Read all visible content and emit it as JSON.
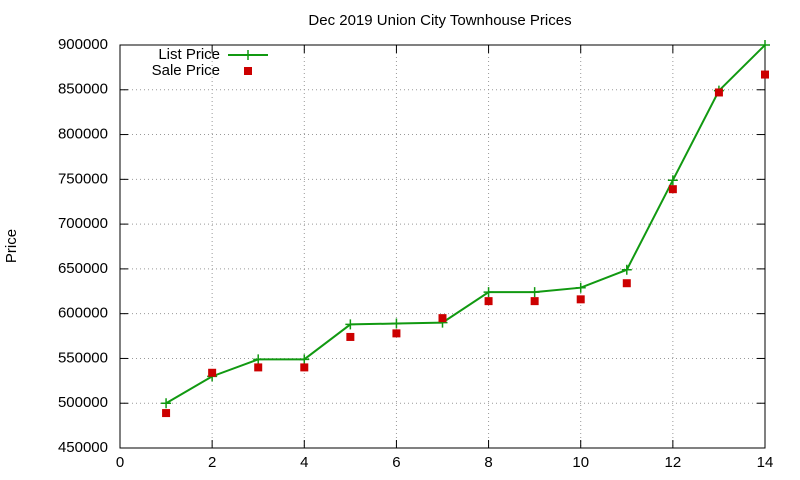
{
  "chart_data": {
    "type": "line",
    "title": "Dec 2019 Union City Townhouse Prices",
    "y_label": "Price",
    "x": [
      1,
      2,
      3,
      4,
      5,
      6,
      7,
      8,
      9,
      10,
      11,
      12,
      13,
      14
    ],
    "series": [
      {
        "name": "List Price",
        "color": "#119911",
        "style": "linespoints",
        "values": [
          500000,
          530000,
          549000,
          549000,
          588000,
          589000,
          590000,
          624000,
          624000,
          629000,
          649000,
          749000,
          849000,
          900000
        ]
      },
      {
        "name": "Sale Price",
        "color": "#cc0000",
        "style": "points",
        "values": [
          489000,
          534000,
          540000,
          540000,
          574000,
          578000,
          595000,
          614000,
          614000,
          616000,
          634000,
          739000,
          847000,
          867000
        ]
      }
    ],
    "xlim": [
      0,
      14
    ],
    "xticks": [
      0,
      2,
      4,
      6,
      8,
      10,
      12,
      14
    ],
    "ylim": [
      450000,
      900000
    ],
    "yticks": [
      450000,
      500000,
      550000,
      600000,
      650000,
      700000,
      750000,
      800000,
      850000,
      900000
    ],
    "grid": true,
    "legend": "top-left"
  }
}
